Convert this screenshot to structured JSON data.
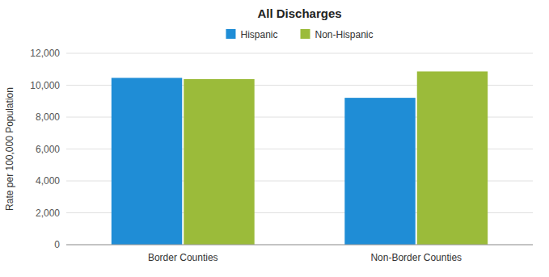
{
  "chart_data": {
    "type": "bar",
    "title": "All Discharges",
    "categories": [
      "Border Counties",
      "Non-Border Counties"
    ],
    "series": [
      {
        "name": "Hispanic",
        "color": "#1F8DD6",
        "values": [
          10459,
          9209
        ]
      },
      {
        "name": "Non-Hispanic",
        "color": "#9BBB3A",
        "values": [
          10381,
          10863
        ]
      }
    ],
    "ylabel": "Rate per 100,000 Population",
    "ylim": [
      0,
      12000
    ],
    "yticks": [
      0,
      {
        "value": 2000,
        "label": "2,000"
      },
      {
        "value": 4000,
        "label": "4,000"
      },
      {
        "value": 6000,
        "label": "6,000"
      },
      {
        "value": 8000,
        "label": "8,000"
      },
      {
        "value": 10000,
        "label": "10,000"
      },
      {
        "value": 12000,
        "label": "12,000"
      }
    ],
    "grid": true,
    "legend": "top"
  }
}
